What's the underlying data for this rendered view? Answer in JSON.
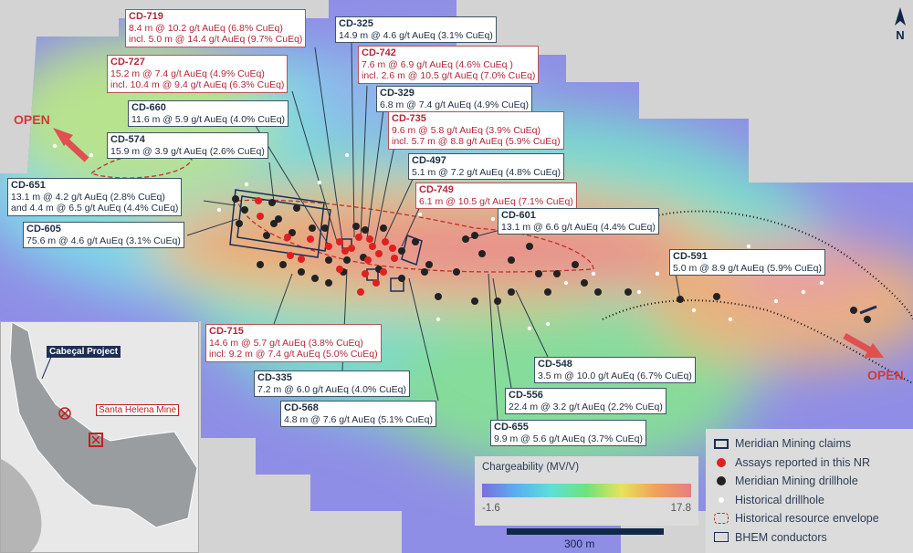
{
  "callouts": [
    {
      "id": "CD-719",
      "lines": [
        "8.4 m @ 10.2 g/t AuEq (6.8% CuEq)",
        "incl. 5.0 m @ 14.4 g/t AuEq (9.7% CuEq)"
      ],
      "new": true
    },
    {
      "id": "CD-325",
      "lines": [
        "14.9 m @ 4.6 g/t AuEq (3.1% CuEq)"
      ],
      "new": false
    },
    {
      "id": "CD-742",
      "lines": [
        "7.6 m @ 6.9 g/t AuEq (4.6% CuEq )",
        "incl. 2.6 m @ 10.5 g/t AuEq (7.0% CuEq)"
      ],
      "new": true
    },
    {
      "id": "CD-727",
      "lines": [
        "15.2 m @ 7.4 g/t AuEq (4.9% CuEq)",
        "incl. 10.4 m @ 9.4 g/t AuEq (6.3% CuEq)"
      ],
      "new": true
    },
    {
      "id": "CD-329",
      "lines": [
        "6.8 m @ 7.4 g/t AuEq (4.9% CuEq)"
      ],
      "new": false
    },
    {
      "id": "CD-660",
      "lines": [
        "11.6 m @ 5.9 g/t AuEq (4.0% CuEq)"
      ],
      "new": false
    },
    {
      "id": "CD-735",
      "lines": [
        "9.6 m @ 5.8 g/t AuEq (3.9% CuEq)",
        "incl. 5.7 m @ 8.8 g/t AuEq (5.9% CuEq)"
      ],
      "new": true
    },
    {
      "id": "CD-574",
      "lines": [
        "15.9 m @ 3.9 g/t AuEq (2.6% CuEq)"
      ],
      "new": false
    },
    {
      "id": "CD-497",
      "lines": [
        "5.1 m @ 7.2 g/t AuEq (4.8% CuEq)"
      ],
      "new": false
    },
    {
      "id": "CD-651",
      "lines": [
        "13.1 m @ 4.2 g/t AuEq (2.8% CuEq)",
        "and 4.4 m @ 6.5 g/t AuEq (4.4% CuEq)"
      ],
      "new": false
    },
    {
      "id": "CD-749",
      "lines": [
        "6.1 m @ 10.5 g/t AuEq (7.1% CuEq)"
      ],
      "new": true
    },
    {
      "id": "CD-601",
      "lines": [
        "13.1 m @ 6.6 g/t AuEq (4.4% CuEq)"
      ],
      "new": false
    },
    {
      "id": "CD-605",
      "lines": [
        "75.6 m @ 4.6 g/t AuEq (3.1% CuEq)"
      ],
      "new": false
    },
    {
      "id": "CD-591",
      "lines": [
        "5.0 m @ 8.9 g/t AuEq (5.9% CuEq)"
      ],
      "new": false
    },
    {
      "id": "CD-715",
      "lines": [
        "14.6 m @ 5.7 g/t AuEq (3.8% CuEq)",
        "incl: 9.2 m @ 7.4 g/t AuEq (5.0% CuEq)"
      ],
      "new": true
    },
    {
      "id": "CD-335",
      "lines": [
        "7.2 m @ 6.0 g/t AuEq (4.0% CuEq)"
      ],
      "new": false
    },
    {
      "id": "CD-548",
      "lines": [
        "3.5 m @ 10.0 g/t AuEq (6.7% CuEq)"
      ],
      "new": false
    },
    {
      "id": "CD-568",
      "lines": [
        "4.8 m @ 7.6 g/t AuEq (5.1% CuEq)"
      ],
      "new": false
    },
    {
      "id": "CD-556",
      "lines": [
        "22.4 m @ 3.2 g/t AuEq (2.2% CuEq)"
      ],
      "new": false
    },
    {
      "id": "CD-655",
      "lines": [
        "9.9 m @ 5.6 g/t AuEq (3.7% CuEq)"
      ],
      "new": false
    }
  ],
  "open_labels": [
    "OPEN",
    "OPEN"
  ],
  "north_label": "N",
  "colorbar": {
    "title": "Chargeability (MV/V)",
    "min": "-1.6",
    "max": "17.8"
  },
  "scale_label": "300 m",
  "legend": [
    {
      "label": "Meridian Mining claims",
      "symbol": "claim-box"
    },
    {
      "label": "Assays reported in this NR",
      "symbol": "red-dot",
      "color": "#e02020"
    },
    {
      "label": "Meridian Mining drillhole",
      "symbol": "black-dot",
      "color": "#222222"
    },
    {
      "label": "Historical drillhole",
      "symbol": "white-dot",
      "color": "#ffffff"
    },
    {
      "label": "Historical resource envelope",
      "symbol": "red-dashed-outline",
      "color": "#c0302a"
    },
    {
      "label": "BHEM conductors",
      "symbol": "outline-box"
    }
  ],
  "inset": {
    "project_label": "Cabeçal Project",
    "mine_label": "Santa Helena Mine"
  }
}
